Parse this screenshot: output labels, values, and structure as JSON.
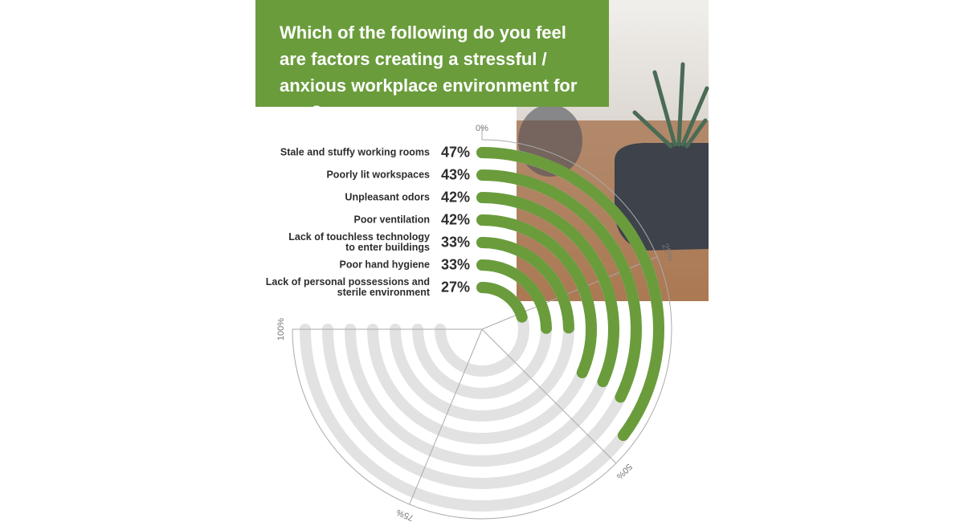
{
  "chart_data": {
    "type": "radial-bar",
    "title": "Which of the following do you feel are factors creating a stressful / anxious workplace environment for you?",
    "categories": [
      "Stale and stuffy working rooms",
      "Poorly lit workspaces",
      "Unpleasant odors",
      "Poor ventilation",
      "Lack of touchless technology\nto enter buildings",
      "Poor hand hygiene",
      "Lack of personal possessions and\nsterile environment"
    ],
    "values": [
      47,
      43,
      42,
      42,
      33,
      33,
      27
    ],
    "value_labels": [
      "47%",
      "43%",
      "42%",
      "42%",
      "33%",
      "33%",
      "27%"
    ],
    "color": "#6a9c3c",
    "lim": [
      0,
      100
    ],
    "ticks": [
      {
        "value": 0,
        "label": "0%"
      },
      {
        "value": 25,
        "label": "25%"
      },
      {
        "value": 50,
        "label": "50%"
      },
      {
        "value": 75,
        "label": "75%"
      },
      {
        "value": 100,
        "label": "100%"
      }
    ]
  }
}
